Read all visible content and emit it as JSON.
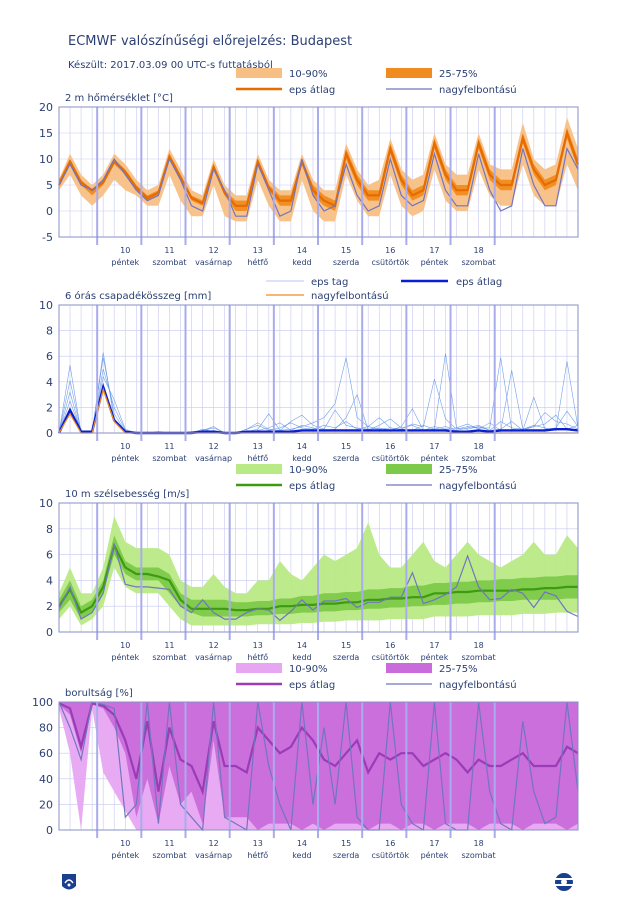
{
  "header": {
    "title": "ECMWF valószínűségi előrejelzés: Budapest",
    "subtitle": "Készült: 2017.03.09 00 UTC-s futtatásból"
  },
  "colors": {
    "axis_text": "#2b3f73",
    "grid": "#c7c9ef",
    "day_line": "#a9acec",
    "temp_outer": "#f8bf85",
    "temp_inner": "#f08c1f",
    "temp_mean": "#e66b00",
    "wind_outer": "#b9ea85",
    "wind_inner": "#7dc94a",
    "wind_mean": "#3c9b10",
    "cloud_outer": "#e7a6f2",
    "cloud_inner": "#c96bda",
    "cloud_mean": "#9a3cb6",
    "hires": "#7275c0",
    "precip_members": "#5b8fe8",
    "precip_mean": "#0a1fd0",
    "precip_members_legend": "#b8c6f0"
  },
  "days": [
    {
      "num": "10",
      "name": "péntek"
    },
    {
      "num": "11",
      "name": "szombat"
    },
    {
      "num": "12",
      "name": "vasárnap"
    },
    {
      "num": "13",
      "name": "hétfő"
    },
    {
      "num": "14",
      "name": "kedd"
    },
    {
      "num": "15",
      "name": "szerda"
    },
    {
      "num": "16",
      "name": "csütörtök"
    },
    {
      "num": "17",
      "name": "péntek"
    },
    {
      "num": "18",
      "name": "szombat"
    }
  ],
  "chart_data": [
    {
      "type": "area",
      "title": "2 m hőmérséklet [°C]",
      "legend": [
        "10-90%",
        "25-75%",
        "eps átlag",
        "nagyfelbontású"
      ],
      "ylim": [
        -5,
        20
      ],
      "yticks": [
        -5,
        0,
        5,
        10,
        15,
        20
      ],
      "series": {
        "p10": [
          4,
          7,
          3,
          1,
          3,
          6,
          4,
          3,
          1,
          1,
          7,
          2,
          -1,
          -1,
          5,
          -1,
          -2,
          -2,
          6,
          1,
          -2,
          -2,
          6,
          0,
          -2,
          -2,
          7,
          2,
          -1,
          -1,
          7,
          1,
          -1,
          0,
          8,
          2,
          0,
          0,
          8,
          3,
          1,
          1,
          9,
          3,
          1,
          1,
          9,
          4
        ],
        "p90": [
          6,
          11,
          7,
          5,
          7,
          11,
          9,
          6,
          4,
          5,
          12,
          8,
          4,
          3,
          10,
          5,
          3,
          3,
          11,
          6,
          4,
          4,
          11,
          6,
          4,
          4,
          13,
          8,
          5,
          6,
          14,
          8,
          6,
          7,
          15,
          9,
          7,
          7,
          15,
          9,
          8,
          8,
          17,
          10,
          8,
          9,
          18,
          12
        ],
        "p25": [
          5,
          9,
          5,
          3,
          5,
          9,
          7,
          4,
          2,
          3,
          10,
          6,
          2,
          1,
          8,
          3,
          0,
          0,
          9,
          4,
          1,
          1,
          9,
          3,
          1,
          0,
          10,
          5,
          2,
          2,
          11,
          5,
          2,
          3,
          12,
          6,
          3,
          3,
          12,
          6,
          4,
          4,
          13,
          7,
          4,
          5,
          14,
          8
        ],
        "p75": [
          6,
          10,
          6,
          4,
          6,
          10,
          8,
          5,
          3,
          4,
          11,
          7,
          3,
          2,
          9,
          4,
          2,
          2,
          10,
          5,
          3,
          3,
          10,
          5,
          3,
          2,
          12,
          7,
          4,
          4,
          13,
          7,
          4,
          5,
          14,
          8,
          5,
          5,
          14,
          8,
          6,
          6,
          15,
          9,
          6,
          7,
          16,
          10
        ],
        "mean": [
          5,
          9.5,
          5.5,
          4,
          5.5,
          9.5,
          7.5,
          4.5,
          2.5,
          3.5,
          10.5,
          6.5,
          2.5,
          1.5,
          8.5,
          3.5,
          1,
          1,
          9.5,
          4.5,
          2,
          2,
          9.5,
          4,
          2,
          1,
          11,
          6,
          3,
          3,
          12,
          6,
          3,
          4,
          13,
          7,
          4,
          4,
          13,
          7,
          5,
          5,
          14,
          8,
          5,
          6,
          15,
          9
        ],
        "hires": [
          5,
          9,
          5,
          4,
          6,
          10,
          7,
          4,
          2,
          3,
          10,
          6,
          1,
          0,
          8,
          4,
          -1,
          -1,
          9,
          4,
          -1,
          0,
          10,
          3,
          0,
          1,
          9,
          3,
          0,
          1,
          10,
          3,
          1,
          2,
          11,
          4,
          1,
          1,
          11,
          4,
          0,
          1,
          12,
          5,
          1,
          1,
          12,
          8
        ]
      }
    },
    {
      "type": "line",
      "title": "6 órás csapadékösszeg [mm]",
      "legend": [
        "eps tag",
        "eps átlag",
        "nagyfelbontású"
      ],
      "ylim": [
        0,
        10
      ],
      "yticks": [
        0,
        2,
        4,
        6,
        8,
        10
      ],
      "members": [
        [
          0,
          5.3,
          0,
          0.1,
          5.9,
          1.5,
          0.1,
          0,
          0,
          0.1,
          0,
          0,
          0,
          0.2,
          0.4,
          0,
          0,
          0.3,
          0.8,
          0.3,
          0.2,
          0.9,
          1.4,
          0.6,
          0.3,
          1.8,
          0.6,
          0.4,
          0.3,
          0.4,
          0.2,
          0.5,
          1.9,
          0.2,
          0.3,
          6.2,
          0.4,
          0.3,
          0.5,
          0.2,
          0.3,
          0.9,
          0.2,
          2.8,
          0.3,
          0.4,
          1.7,
          0.5
        ],
        [
          0,
          4.1,
          0.1,
          0,
          5.0,
          2.0,
          0.2,
          0,
          0,
          0,
          0,
          0,
          0.1,
          0,
          0.2,
          0,
          0,
          0.1,
          0.3,
          1.5,
          0.2,
          0.3,
          0.5,
          0.8,
          1.2,
          2.3,
          5.9,
          1.2,
          0.5,
          0.3,
          0.4,
          0.3,
          0.7,
          0.5,
          4.2,
          1.1,
          0.3,
          0.5,
          0.4,
          0.4,
          5.9,
          0.3,
          0.2,
          0.5,
          1.6,
          0.9,
          0.7,
          0.3
        ],
        [
          0,
          3.2,
          0,
          0,
          6.3,
          1.0,
          0,
          0,
          0,
          0.1,
          0,
          0,
          0,
          0.3,
          0.1,
          0,
          0,
          0,
          0.2,
          0.4,
          0.8,
          0.2,
          0.6,
          0.4,
          0.2,
          0.3,
          1.2,
          3.0,
          0.2,
          0.6,
          1.1,
          0.4,
          0.6,
          0.2,
          0.5,
          0.3,
          0.4,
          0.7,
          0.3,
          0.8,
          0.2,
          4.9,
          0.3,
          0.6,
          0.4,
          0.2,
          5.6,
          0.4
        ],
        [
          0,
          2.5,
          0.1,
          0.1,
          4.4,
          2.6,
          0.3,
          0,
          0,
          0,
          0,
          0,
          0.1,
          0.2,
          0.5,
          0,
          0,
          0.3,
          0.6,
          0.2,
          0.4,
          0.8,
          0.4,
          0.3,
          0.6,
          0.4,
          0.9,
          0.3,
          0.5,
          1.2,
          0.4,
          0.3,
          0.2,
          0.6,
          0.3,
          0.5,
          0.2,
          0.4,
          0.6,
          0.2,
          0.9,
          0.4,
          0.3,
          0.5,
          0.7,
          1.4,
          0.3,
          0.6
        ]
      ],
      "mean": [
        0,
        1.8,
        0.1,
        0.1,
        3.6,
        1.0,
        0.1,
        0,
        0,
        0,
        0,
        0,
        0,
        0.1,
        0.1,
        0,
        0,
        0.1,
        0.1,
        0.1,
        0.1,
        0.1,
        0.2,
        0.2,
        0.2,
        0.2,
        0.2,
        0.2,
        0.2,
        0.2,
        0.2,
        0.2,
        0.2,
        0.2,
        0.2,
        0.2,
        0.1,
        0.1,
        0.2,
        0.1,
        0.2,
        0.2,
        0.2,
        0.2,
        0.2,
        0.3,
        0.3,
        0.2
      ],
      "hires": [
        0,
        1.5,
        0,
        0,
        3.4,
        0.9,
        0,
        0,
        0,
        0,
        0,
        0,
        0,
        0,
        0,
        0,
        0,
        0,
        0,
        0,
        0,
        0,
        0,
        0,
        0,
        0,
        0,
        0,
        0,
        0,
        0,
        0,
        0,
        0,
        0,
        0,
        0,
        0,
        0,
        0,
        0,
        0,
        0,
        0,
        0,
        0,
        0,
        0
      ]
    },
    {
      "type": "area",
      "title": "10 m szélsebesség [m/s]",
      "legend": [
        "10-90%",
        "25-75%",
        "eps átlag",
        "nagyfelbontású"
      ],
      "ylim": [
        0,
        10
      ],
      "yticks": [
        0,
        2,
        4,
        6,
        8,
        10
      ],
      "series": {
        "p10": [
          1,
          2,
          0.5,
          1,
          2,
          5,
          3.5,
          3,
          3,
          3,
          2,
          1,
          0.5,
          0.5,
          0.5,
          0.5,
          0.5,
          0.5,
          0.6,
          0.6,
          0.6,
          0.6,
          0.7,
          0.7,
          0.8,
          0.8,
          0.9,
          0.9,
          0.9,
          0.9,
          1,
          1,
          1,
          1,
          1.2,
          1.2,
          1.2,
          1.2,
          1.3,
          1.3,
          1.3,
          1.3,
          1.4,
          1.4,
          1.4,
          1.5,
          1.5,
          1.5
        ],
        "p90": [
          3,
          5,
          3,
          3,
          5,
          9,
          7,
          6.5,
          6.5,
          6.5,
          6,
          4,
          3.5,
          3.5,
          4.5,
          3.5,
          3,
          3,
          4,
          4,
          5.5,
          4.5,
          4,
          5,
          6,
          5.5,
          6,
          6.5,
          8.5,
          6,
          5,
          5,
          6,
          7,
          5.5,
          5,
          6,
          7,
          6,
          5.5,
          5,
          5.5,
          6,
          7,
          6,
          6,
          7.5,
          6.5
        ],
        "p25": [
          1.5,
          2.5,
          1,
          1.5,
          3,
          6,
          4.5,
          4,
          4,
          4,
          3,
          2,
          1.5,
          1.2,
          1.2,
          1.2,
          1.2,
          1.2,
          1.3,
          1.3,
          1.4,
          1.4,
          1.5,
          1.5,
          1.6,
          1.6,
          1.7,
          1.7,
          1.8,
          1.8,
          1.9,
          1.9,
          2,
          2,
          2.1,
          2.1,
          2.2,
          2.2,
          2.3,
          2.3,
          2.4,
          2.4,
          2.5,
          2.5,
          2.5,
          2.5,
          2.6,
          2.6
        ],
        "p75": [
          2.5,
          4,
          2,
          2.5,
          4,
          7.5,
          5.5,
          5,
          5,
          5,
          4.5,
          3,
          2.5,
          2.5,
          2.5,
          2.5,
          2.3,
          2.3,
          2.4,
          2.4,
          2.6,
          2.6,
          2.8,
          2.8,
          3,
          3,
          3.1,
          3.1,
          3.3,
          3.3,
          3.4,
          3.4,
          3.6,
          3.6,
          3.8,
          3.8,
          3.9,
          3.9,
          4,
          4,
          4.1,
          4.1,
          4.2,
          4.2,
          4.3,
          4.3,
          4.4,
          4.4
        ],
        "mean": [
          2,
          3.3,
          1.5,
          2,
          3.5,
          6.7,
          5,
          4.5,
          4.5,
          4.3,
          4,
          2.5,
          1.8,
          1.8,
          1.8,
          1.8,
          1.7,
          1.7,
          1.8,
          1.8,
          2,
          2,
          2.1,
          2.1,
          2.2,
          2.2,
          2.3,
          2.3,
          2.5,
          2.5,
          2.6,
          2.6,
          2.7,
          2.7,
          3,
          3,
          3.1,
          3.1,
          3.2,
          3.2,
          3.2,
          3.2,
          3.3,
          3.3,
          3.4,
          3.4,
          3.5,
          3.5
        ],
        "hires": [
          1.8,
          3.5,
          1,
          1.5,
          3,
          6.8,
          3.7,
          3.5,
          3.5,
          3.4,
          3.3,
          2,
          1.5,
          2.5,
          1.5,
          1,
          1,
          1.5,
          1.8,
          1.7,
          0.9,
          1.6,
          2.5,
          1.7,
          2.4,
          2.4,
          2.6,
          1.9,
          2.3,
          2.3,
          2.7,
          2.7,
          4.6,
          2.2,
          2.5,
          2.9,
          3.5,
          5.9,
          3.5,
          2.5,
          2.6,
          3.3,
          3,
          1.9,
          3.1,
          2.8,
          1.6,
          1.2
        ]
      }
    },
    {
      "type": "area",
      "title": "borultság [%]",
      "legend": [
        "10-90%",
        "25-75%",
        "eps átlag",
        "nagyfelbontású"
      ],
      "ylim": [
        0,
        100
      ],
      "yticks": [
        0,
        20,
        40,
        60,
        80,
        100
      ],
      "series": {
        "p10": [
          95,
          60,
          0,
          95,
          45,
          30,
          15,
          0,
          0,
          0,
          0,
          0,
          0,
          0,
          0,
          0,
          0,
          0,
          0,
          0,
          0,
          0,
          0,
          0,
          0,
          0,
          0,
          0,
          0,
          0,
          0,
          0,
          0,
          0,
          0,
          0,
          0,
          0,
          0,
          0,
          0,
          0,
          0,
          0,
          0,
          0,
          0,
          0
        ],
        "p90": [
          100,
          100,
          100,
          100,
          100,
          100,
          100,
          100,
          100,
          100,
          100,
          100,
          100,
          100,
          100,
          100,
          100,
          100,
          100,
          100,
          100,
          100,
          100,
          100,
          100,
          100,
          100,
          100,
          100,
          100,
          100,
          100,
          100,
          100,
          100,
          100,
          100,
          100,
          100,
          100,
          100,
          100,
          100,
          100,
          100,
          100,
          100,
          100
        ],
        "p25": [
          98,
          90,
          60,
          98,
          95,
          80,
          60,
          10,
          40,
          5,
          50,
          20,
          30,
          5,
          70,
          10,
          10,
          10,
          0,
          5,
          5,
          5,
          0,
          5,
          0,
          5,
          5,
          5,
          0,
          5,
          5,
          0,
          5,
          5,
          0,
          5,
          5,
          5,
          0,
          5,
          5,
          5,
          0,
          5,
          5,
          5,
          0,
          5
        ],
        "p75": [
          100,
          100,
          100,
          100,
          100,
          100,
          100,
          100,
          100,
          100,
          100,
          100,
          100,
          100,
          100,
          100,
          100,
          100,
          100,
          100,
          100,
          100,
          100,
          100,
          100,
          100,
          100,
          100,
          100,
          100,
          100,
          100,
          100,
          100,
          100,
          100,
          100,
          100,
          100,
          100,
          100,
          100,
          100,
          100,
          100,
          100,
          100,
          100
        ],
        "mean": [
          99,
          95,
          65,
          99,
          97,
          90,
          70,
          40,
          85,
          30,
          80,
          55,
          50,
          30,
          85,
          50,
          50,
          45,
          80,
          70,
          60,
          65,
          80,
          70,
          55,
          50,
          60,
          70,
          45,
          60,
          55,
          60,
          60,
          50,
          55,
          60,
          55,
          45,
          55,
          50,
          50,
          55,
          60,
          50,
          50,
          50,
          65,
          60
        ],
        "hires": [
          100,
          80,
          55,
          100,
          98,
          95,
          10,
          20,
          100,
          5,
          100,
          20,
          10,
          0,
          100,
          10,
          5,
          0,
          100,
          50,
          20,
          0,
          100,
          20,
          80,
          20,
          100,
          10,
          0,
          0,
          100,
          20,
          5,
          0,
          100,
          5,
          0,
          0,
          100,
          30,
          5,
          0,
          85,
          30,
          5,
          10,
          100,
          30
        ]
      }
    }
  ]
}
